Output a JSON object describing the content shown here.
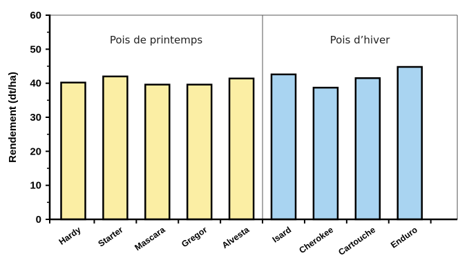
{
  "chart_data": {
    "type": "bar",
    "ylabel": "Rendement (dt/ha)",
    "xlabel": "",
    "ylim": [
      0,
      60
    ],
    "yticks": [
      "0",
      "10",
      "20",
      "30",
      "40",
      "50",
      "60"
    ],
    "grid": false,
    "categories": [
      "Hardy",
      "Starter",
      "Mascara",
      "Gregor",
      "Alvesta",
      "Isard",
      "Cherokee",
      "Cartouche",
      "Enduro"
    ],
    "values": [
      40.2,
      42.0,
      39.6,
      39.6,
      41.4,
      42.6,
      38.7,
      41.5,
      44.8
    ],
    "groups": [
      {
        "label": "Pois de printemps",
        "color": "#fbeea4",
        "indices": [
          0,
          1,
          2,
          3,
          4
        ]
      },
      {
        "label": "Pois d’hiver",
        "color": "#a9d4f1",
        "indices": [
          5,
          6,
          7,
          8
        ]
      }
    ]
  }
}
